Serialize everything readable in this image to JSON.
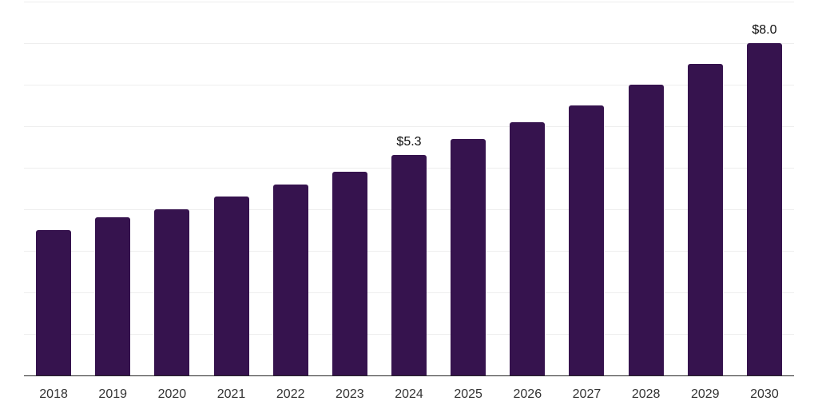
{
  "chart_data": {
    "type": "bar",
    "title": "",
    "xlabel": "",
    "ylabel": "",
    "categories": [
      "2018",
      "2019",
      "2020",
      "2021",
      "2022",
      "2023",
      "2024",
      "2025",
      "2026",
      "2027",
      "2028",
      "2029",
      "2030"
    ],
    "values": [
      3.5,
      3.8,
      4.0,
      4.3,
      4.6,
      4.9,
      5.3,
      5.7,
      6.1,
      6.5,
      7.0,
      7.5,
      8.0
    ],
    "data_labels": [
      "",
      "",
      "",
      "",
      "",
      "",
      "$5.3",
      "",
      "",
      "",
      "",
      "",
      "$8.0"
    ],
    "ylim": [
      0,
      9
    ],
    "gridline_step": 1,
    "grid": true,
    "legend": false,
    "y_axis_tick_labels_visible": false,
    "colors": {
      "bar": "#36134E",
      "gridline": "#eeeeee",
      "axis_line": "#262626",
      "x_tick_label": "#333333",
      "data_label": "#0d0d0d",
      "background": "#ffffff"
    }
  }
}
